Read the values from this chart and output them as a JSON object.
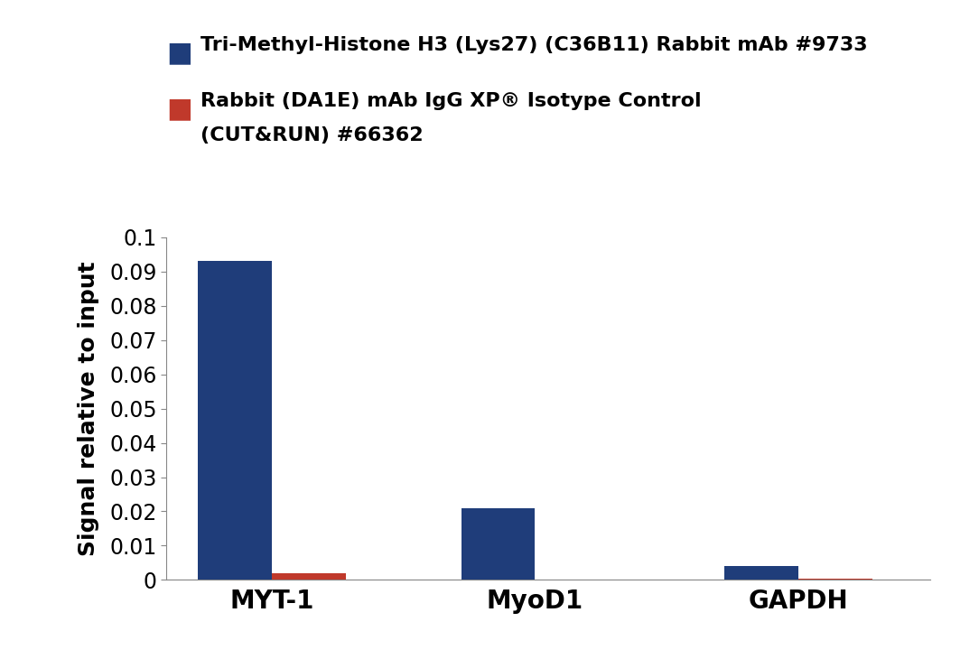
{
  "categories": [
    "MYT-1",
    "MyoD1",
    "GAPDH"
  ],
  "blue_values": [
    0.093,
    0.021,
    0.004
  ],
  "red_values": [
    0.002,
    1e-05,
    0.0004
  ],
  "blue_color": "#1f3d7a",
  "red_color": "#c0392b",
  "ylabel": "Signal relative to input",
  "ylim": [
    0,
    0.1
  ],
  "yticks": [
    0,
    0.01,
    0.02,
    0.03,
    0.04,
    0.05,
    0.06,
    0.07,
    0.08,
    0.09,
    0.1
  ],
  "ytick_labels": [
    "0",
    "0.01",
    "0.02",
    "0.03",
    "0.04",
    "0.05",
    "0.06",
    "0.07",
    "0.08",
    "0.09",
    "0.1"
  ],
  "legend_blue": "Tri-Methyl-Histone H3 (Lys27) (C36B11) Rabbit mAb #9733",
  "legend_red_line1": "Rabbit (DA1E) mAb IgG XP® Isotype Control",
  "legend_red_line2": "(CUT&RUN) #66362",
  "bar_width": 0.28,
  "x_positions": [
    0,
    1.0,
    2.0
  ],
  "background_color": "#ffffff",
  "tick_fontsize": 17,
  "legend_fontsize": 16,
  "axis_label_fontsize": 18,
  "xtick_fontsize": 20
}
